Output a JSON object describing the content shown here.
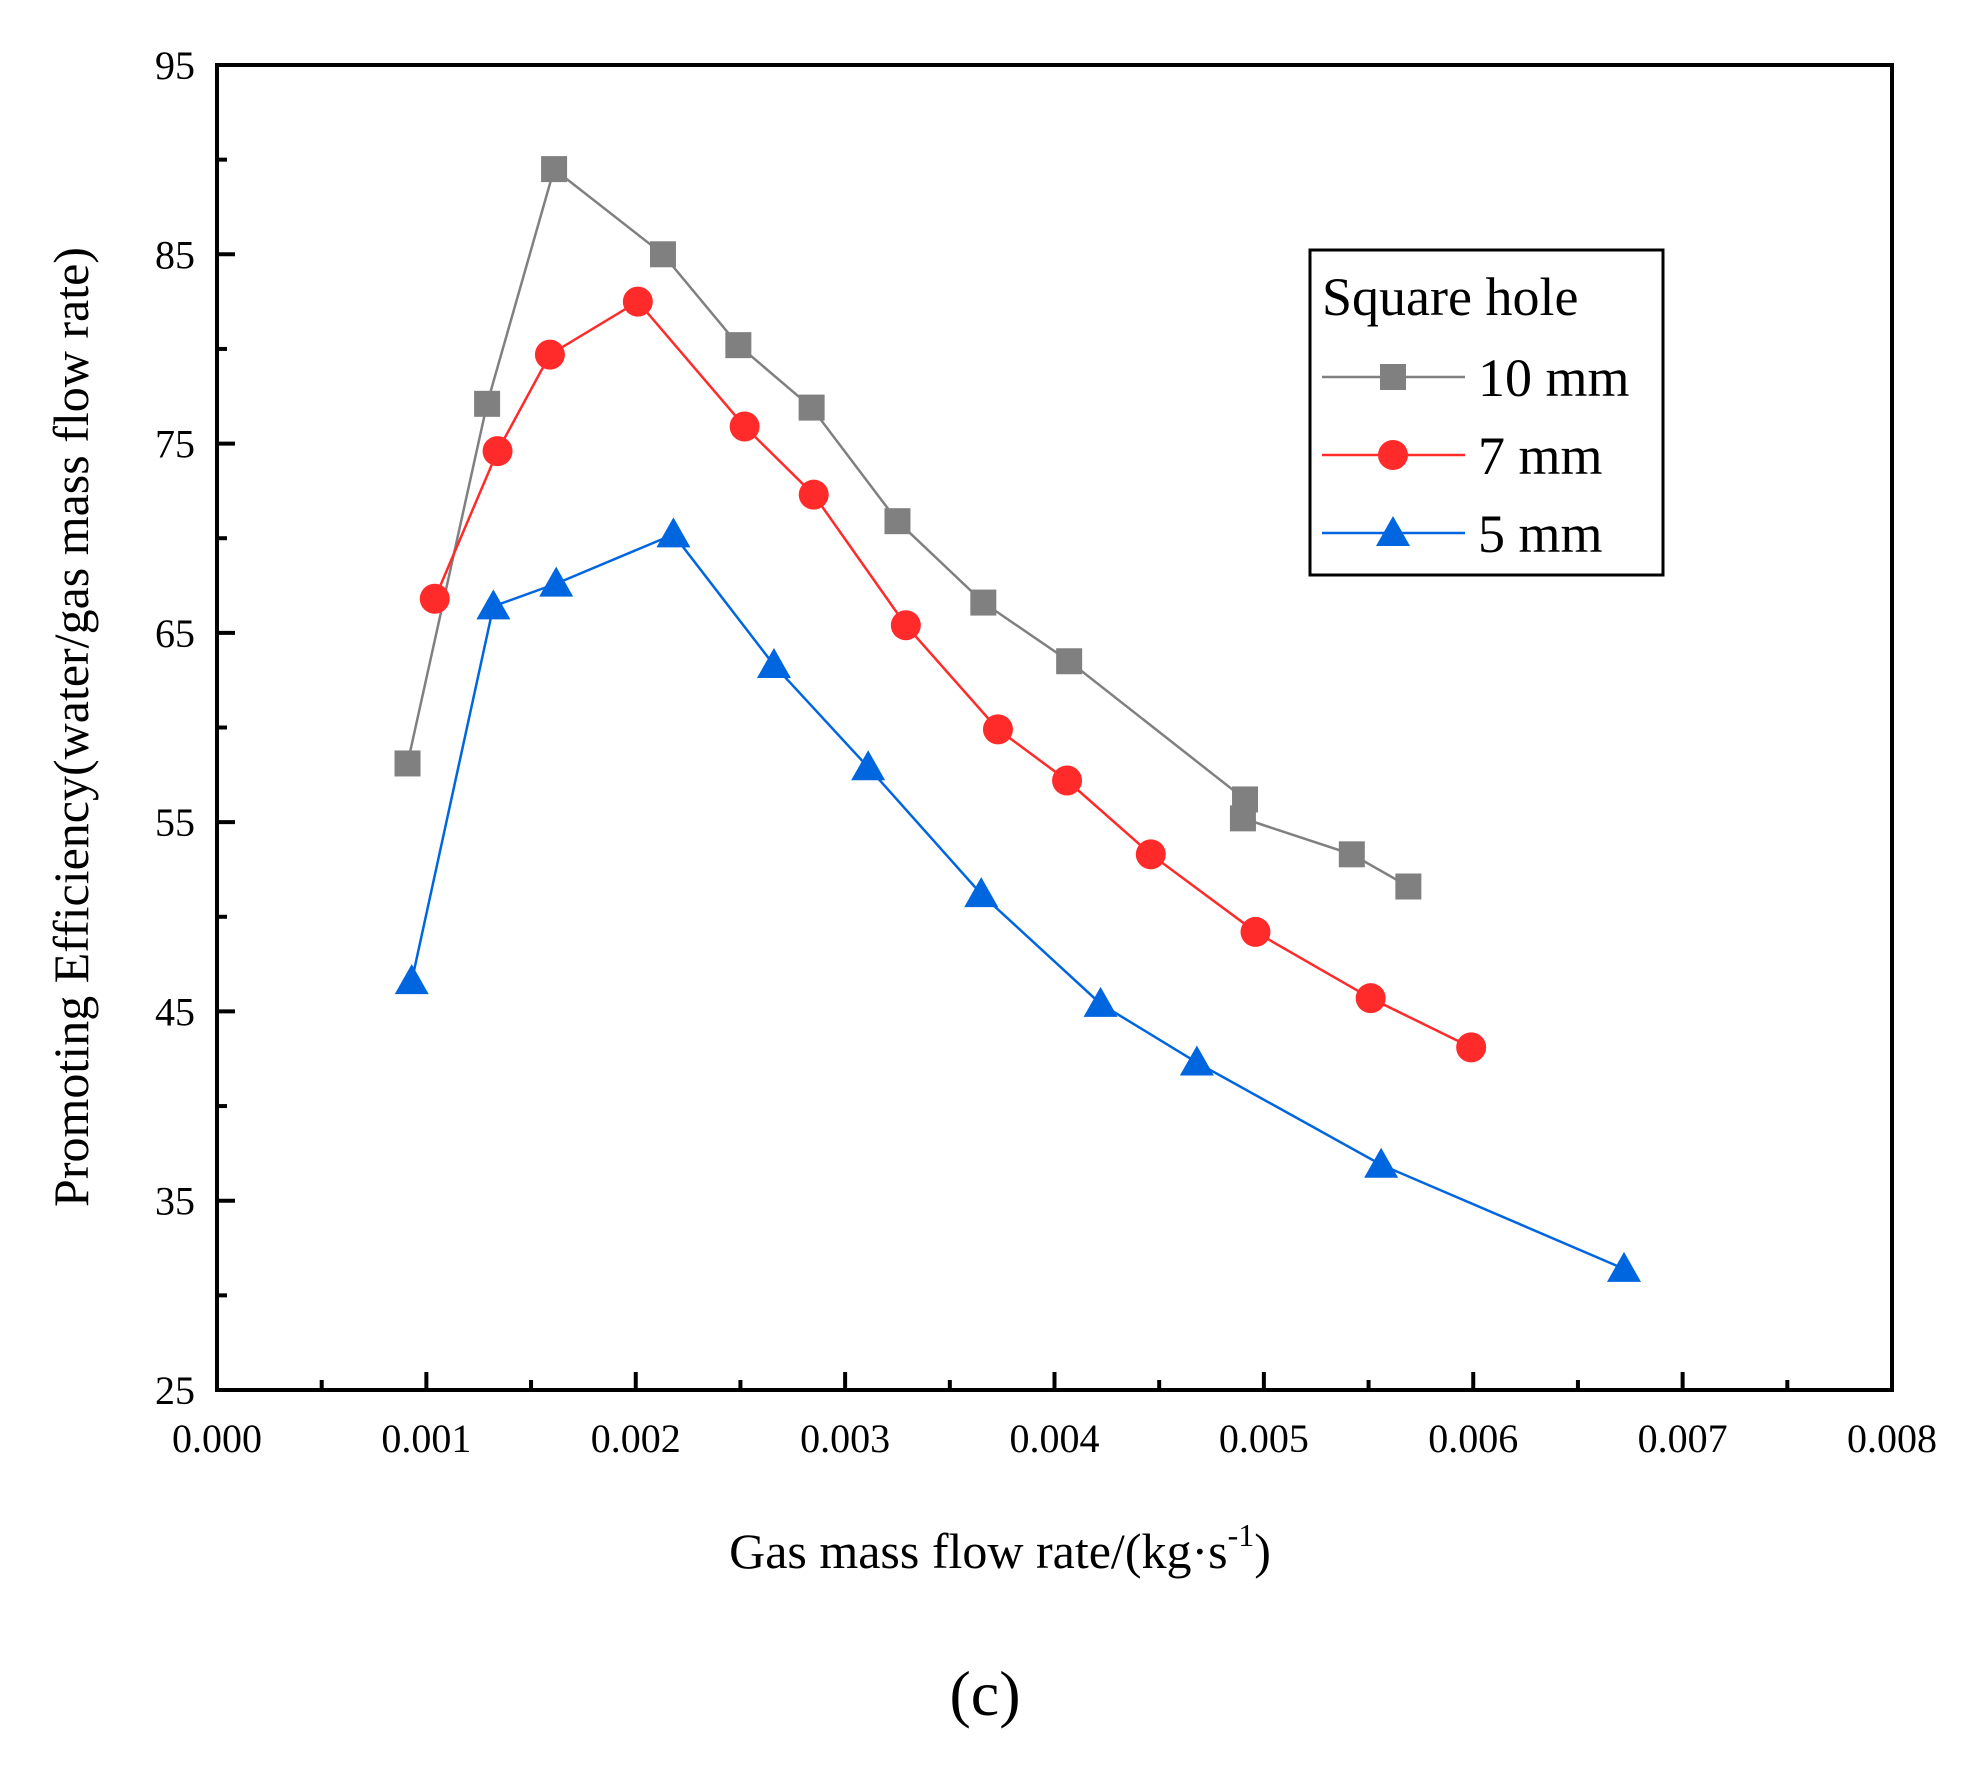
{
  "chart_data": {
    "type": "line",
    "title": "",
    "xlabel": "Gas mass flow rate/(kg·s",
    "xlabel_sup": "-1",
    "xlabel_close": ")",
    "ylabel": "Promoting Efficiency(water/gas mass flow rate)",
    "xlim": [
      0.0,
      0.008
    ],
    "ylim": [
      25,
      95
    ],
    "x_ticks": [
      "0.000",
      "0.001",
      "0.002",
      "0.003",
      "0.004",
      "0.005",
      "0.006",
      "0.007",
      "0.008"
    ],
    "y_ticks": [
      "25",
      "35",
      "45",
      "55",
      "65",
      "75",
      "85",
      "95"
    ],
    "grid": false,
    "legend": {
      "title": "Square hole",
      "position": "top-right"
    },
    "series": [
      {
        "name": "10 mm",
        "color": "#808080",
        "marker": "square",
        "x": [
          0.00091,
          0.00129,
          0.00161,
          0.00213,
          0.00249,
          0.00284,
          0.00325,
          0.00366,
          0.00407,
          0.00491,
          0.0049,
          0.00542,
          0.00569
        ],
        "y": [
          58.1,
          77.1,
          89.5,
          85.0,
          80.2,
          76.9,
          70.9,
          66.6,
          63.5,
          56.2,
          55.2,
          53.3,
          51.6
        ]
      },
      {
        "name": "7 mm",
        "color": "#ff2a2a",
        "marker": "circle",
        "x": [
          0.00104,
          0.00134,
          0.00159,
          0.00201,
          0.00252,
          0.00285,
          0.00329,
          0.00373,
          0.00406,
          0.00446,
          0.00496,
          0.00551,
          0.00599
        ],
        "y": [
          66.8,
          74.6,
          79.7,
          82.5,
          75.9,
          72.3,
          65.4,
          59.9,
          57.2,
          53.3,
          49.2,
          45.7,
          43.1
        ]
      },
      {
        "name": "5 mm",
        "color": "#0066e0",
        "marker": "triangle",
        "x": [
          0.00093,
          0.00132,
          0.00162,
          0.00218,
          0.00266,
          0.00311,
          0.00365,
          0.00422,
          0.00468,
          0.00556,
          0.00672
        ],
        "y": [
          46.6,
          66.4,
          67.6,
          70.2,
          63.3,
          57.9,
          51.2,
          45.4,
          42.3,
          36.9,
          31.4
        ]
      }
    ]
  },
  "panel_label": "(c)"
}
